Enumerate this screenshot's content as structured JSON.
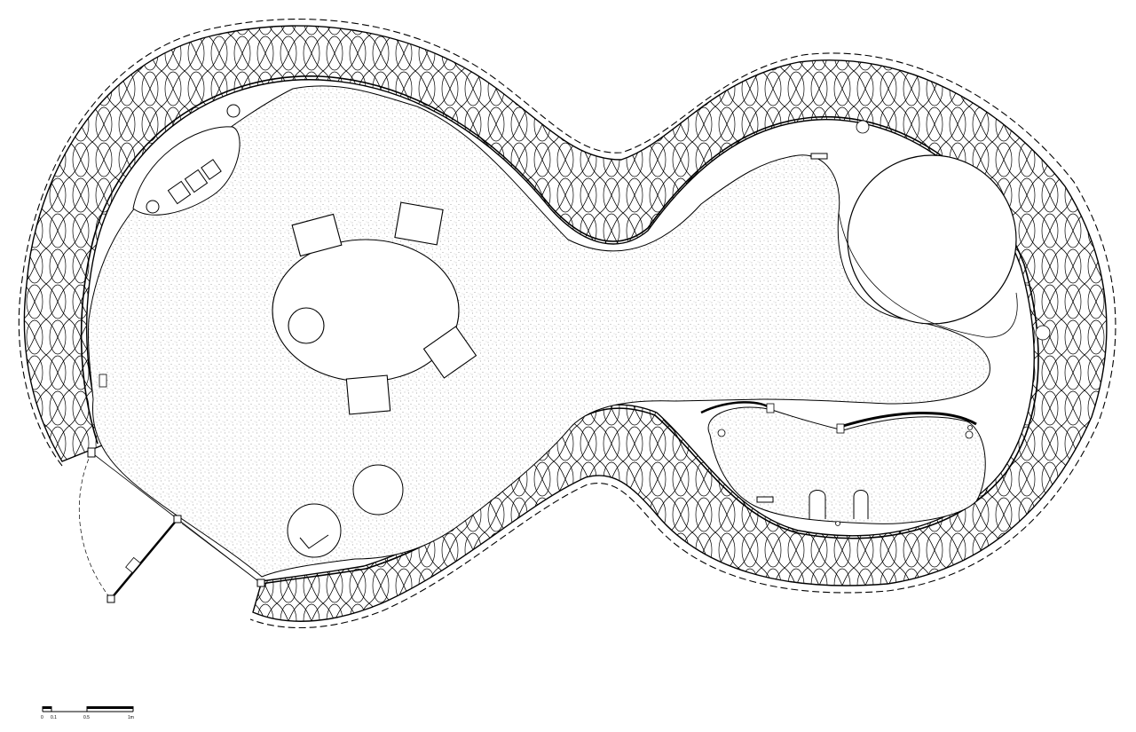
{
  "drawing": {
    "type": "architectural floor plan",
    "line_color": "#000000",
    "background": "#ffffff",
    "hatch_color": "#999999"
  },
  "scale_bar": {
    "label_0": "0",
    "label_1": "0.1",
    "label_2": "0.5",
    "label_3": "1m"
  },
  "furniture": {
    "table_shape": "oval",
    "chair_count": 5,
    "stool_count": 3
  }
}
